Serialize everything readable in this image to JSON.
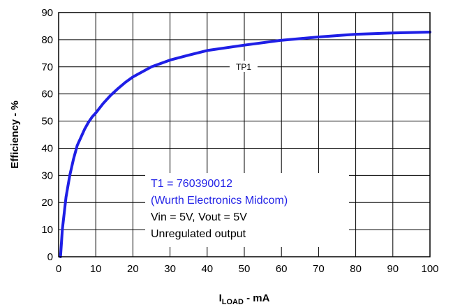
{
  "chart_data": {
    "type": "line",
    "title": "",
    "xlabel": {
      "main": "I",
      "sub": "LOAD",
      "rest": " - mA"
    },
    "ylabel": "Efficiency - %",
    "xlim": [
      0,
      100
    ],
    "ylim": [
      0,
      90
    ],
    "x_ticks": [
      "0",
      "10",
      "20",
      "30",
      "40",
      "50",
      "60",
      "70",
      "80",
      "90",
      "100"
    ],
    "y_ticks": [
      "0",
      "10",
      "20",
      "30",
      "40",
      "50",
      "60",
      "70",
      "80",
      "90"
    ],
    "grid": true,
    "series": [
      {
        "name": "TP1",
        "color": "#1f1fe6",
        "x": [
          0.5,
          1,
          2,
          3,
          4,
          5,
          6,
          7,
          8,
          9,
          10,
          12,
          14,
          16,
          18,
          20,
          25,
          30,
          35,
          40,
          50,
          60,
          70,
          80,
          90,
          100
        ],
        "y": [
          0,
          10,
          22,
          30,
          36,
          41,
          44,
          47,
          49.5,
          51.5,
          53,
          56.5,
          59.5,
          62,
          64.3,
          66.3,
          70,
          72.5,
          74.3,
          76,
          78,
          79.8,
          81,
          82,
          82.5,
          82.8
        ]
      }
    ],
    "series_label": "TP1",
    "annotation": {
      "lines": [
        {
          "text": "T1 = 760390012",
          "color": "#1f1fe6"
        },
        {
          "text": "(Wurth Electronics Midcom)",
          "color": "#1f1fe6"
        },
        {
          "text": "Vin = 5V, Vout = 5V",
          "color": "#000000"
        },
        {
          "text": "Unregulated output",
          "color": "#000000"
        }
      ]
    }
  }
}
